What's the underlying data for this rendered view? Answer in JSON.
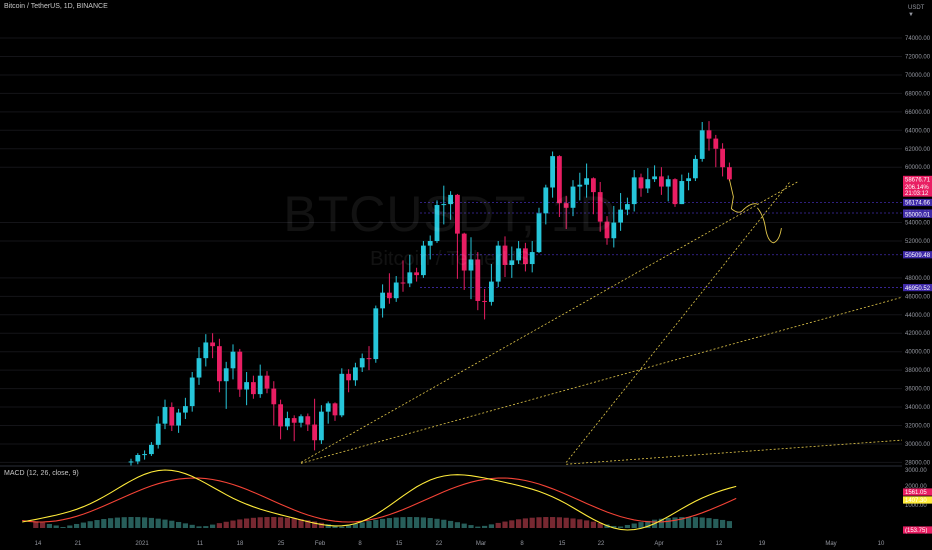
{
  "header": {
    "symbol": "Bitcoin / TetherUS, 1D, BINANCE",
    "watermark_symbol": "BTCUSDT, 1D",
    "watermark_name": "Bitcoin / TetherUS",
    "currency": "USDT",
    "currency_sub": "▼"
  },
  "macd": {
    "label": "MACD (12, 26, close, 9)"
  },
  "colors": {
    "up": "#26c6da",
    "down": "#e91e63",
    "macd_line": "#ffeb3b",
    "signal_line": "#f44336",
    "trend": "#e3c84b",
    "hist_up": "#2e6f6a",
    "hist_down": "#8c2f39"
  },
  "chart_data": [
    {
      "type": "candlestick",
      "y_axis_ticks": [
        28000,
        30000,
        32000,
        34000,
        36000,
        38000,
        40000,
        42000,
        44000,
        46000,
        48000,
        52000,
        54000,
        60000,
        62000,
        64000,
        66000,
        68000,
        70000,
        72000,
        74000
      ],
      "y_tick_labels": [
        "28000.00",
        "30000.00",
        "32000.00",
        "34000.00",
        "36000.00",
        "38000.00",
        "40000.00",
        "42000.00",
        "44000.00",
        "46000.00",
        "48000.00",
        "52000.00",
        "54000.00",
        "60000.00",
        "62000.00",
        "64000.00",
        "66000.00",
        "68000.00",
        "70000.00",
        "72000.00",
        "74000.00"
      ],
      "ylim": [
        27500,
        76500
      ],
      "x_tick_labels": [
        "14",
        "21",
        "2021",
        "11",
        "18",
        "25",
        "Feb",
        "8",
        "15",
        "22",
        "Mar",
        "8",
        "15",
        "22",
        "Apr",
        "12",
        "19",
        "May",
        "10"
      ],
      "price_tags": [
        {
          "value": 58676.71,
          "label": "58676.71",
          "color": "#e91e63"
        },
        {
          "value": 57900,
          "label": "206.14%",
          "color": "#e91e63"
        },
        {
          "value": 57200,
          "label": "21:03:12",
          "color": "#e91e63"
        },
        {
          "value": 56174.66,
          "label": "56174.66",
          "color": "#3f2aa8"
        },
        {
          "value": 55031.89,
          "label": "55031.89",
          "color": "#3f2aa8"
        },
        {
          "value": 54900,
          "label": "55000.01",
          "color": "#3f2aa8"
        },
        {
          "value": 50509.48,
          "label": "50509.48",
          "color": "#3f2aa8"
        },
        {
          "value": 46950.52,
          "label": "46950.52",
          "color": "#3f2aa8"
        }
      ],
      "candles": [
        [
          28000,
          28400,
          27600,
          28100
        ],
        [
          28100,
          29000,
          27800,
          28800
        ],
        [
          28800,
          29300,
          28300,
          28900
        ],
        [
          28900,
          30200,
          28700,
          29900
        ],
        [
          29900,
          33000,
          29500,
          32200
        ],
        [
          32200,
          34800,
          31600,
          34000
        ],
        [
          34000,
          34500,
          31400,
          32000
        ],
        [
          32000,
          33800,
          31200,
          33400
        ],
        [
          33400,
          35000,
          32700,
          34100
        ],
        [
          34100,
          37800,
          33500,
          37200
        ],
        [
          37200,
          40500,
          36400,
          39300
        ],
        [
          39300,
          41900,
          38400,
          41000
        ],
        [
          41000,
          42000,
          39300,
          40600
        ],
        [
          40600,
          41400,
          35600,
          36800
        ],
        [
          36800,
          38900,
          33800,
          38200
        ],
        [
          38200,
          40800,
          37000,
          40000
        ],
        [
          40000,
          40300,
          35100,
          35900
        ],
        [
          35900,
          37800,
          34200,
          36700
        ],
        [
          36700,
          37400,
          34900,
          35400
        ],
        [
          35400,
          38600,
          35000,
          37400
        ],
        [
          37400,
          37900,
          35500,
          36000
        ],
        [
          36000,
          36800,
          32000,
          34300
        ],
        [
          34300,
          34800,
          30500,
          31900
        ],
        [
          31900,
          33500,
          31500,
          32800
        ],
        [
          32800,
          33100,
          30300,
          32300
        ],
        [
          32300,
          33200,
          31800,
          33000
        ],
        [
          33000,
          33300,
          31400,
          32100
        ],
        [
          32100,
          34900,
          29300,
          30400
        ],
        [
          30400,
          34200,
          30000,
          33500
        ],
        [
          33500,
          34600,
          32200,
          34400
        ],
        [
          34400,
          34500,
          32500,
          33100
        ],
        [
          33100,
          38200,
          32900,
          37600
        ],
        [
          37600,
          38100,
          35600,
          36900
        ],
        [
          36900,
          38800,
          36300,
          38300
        ],
        [
          38300,
          39800,
          37800,
          39300
        ],
        [
          39300,
          40600,
          38000,
          39200
        ],
        [
          39200,
          45000,
          38800,
          44700
        ],
        [
          44700,
          47300,
          43700,
          46400
        ],
        [
          46400,
          48500,
          45200,
          45800
        ],
        [
          45800,
          48200,
          45400,
          47500
        ],
        [
          47500,
          49900,
          46500,
          47400
        ],
        [
          47400,
          50500,
          47000,
          48600
        ],
        [
          48600,
          49100,
          47600,
          48300
        ],
        [
          48300,
          52000,
          48000,
          51500
        ],
        [
          51500,
          52600,
          50000,
          52000
        ],
        [
          52000,
          56400,
          51800,
          55900
        ],
        [
          55900,
          58000,
          53800,
          56000
        ],
        [
          56000,
          57400,
          54300,
          57000
        ],
        [
          57000,
          57100,
          47900,
          52800
        ],
        [
          52800,
          52900,
          46700,
          48800
        ],
        [
          48800,
          52400,
          45700,
          50000
        ],
        [
          50000,
          50800,
          44500,
          45500
        ],
        [
          45500,
          46800,
          43500,
          45400
        ],
        [
          45400,
          49500,
          45000,
          47600
        ],
        [
          47600,
          52000,
          47000,
          51500
        ],
        [
          51500,
          52500,
          48100,
          49400
        ],
        [
          49400,
          51400,
          48000,
          49900
        ],
        [
          49900,
          52000,
          49500,
          51200
        ],
        [
          51200,
          51800,
          48700,
          49500
        ],
        [
          49500,
          52000,
          48600,
          50800
        ],
        [
          50800,
          55600,
          50700,
          55000
        ],
        [
          55000,
          58100,
          53800,
          57800
        ],
        [
          57800,
          61700,
          56700,
          61200
        ],
        [
          61200,
          61300,
          54600,
          56100
        ],
        [
          56100,
          56900,
          53300,
          55600
        ],
        [
          55600,
          58600,
          54700,
          57900
        ],
        [
          57900,
          59400,
          56400,
          58100
        ],
        [
          58100,
          60400,
          56700,
          58800
        ],
        [
          58800,
          58900,
          54900,
          57300
        ],
        [
          57300,
          58400,
          53000,
          54100
        ],
        [
          54100,
          54700,
          51600,
          52300
        ],
        [
          52300,
          55800,
          51300,
          54000
        ],
        [
          54000,
          57200,
          53100,
          55400
        ],
        [
          55400,
          56700,
          54800,
          56000
        ],
        [
          56000,
          59700,
          55200,
          58900
        ],
        [
          58900,
          59300,
          56800,
          57700
        ],
        [
          57700,
          59900,
          57200,
          58700
        ],
        [
          58700,
          60200,
          58400,
          59000
        ],
        [
          59000,
          60000,
          57000,
          57900
        ],
        [
          57900,
          59100,
          56300,
          58700
        ],
        [
          58700,
          58800,
          55700,
          56000
        ],
        [
          56000,
          59200,
          56000,
          58500
        ],
        [
          58500,
          59400,
          57500,
          58800
        ],
        [
          58800,
          61300,
          58500,
          60900
        ],
        [
          60900,
          64900,
          60600,
          64000
        ],
        [
          64000,
          65000,
          61800,
          63100
        ],
        [
          63100,
          63500,
          60000,
          62000
        ],
        [
          62000,
          62600,
          59000,
          60000
        ],
        [
          60000,
          60500,
          58500,
          58677
        ]
      ],
      "trend_lines": [
        {
          "from": [
            25,
            28000
          ],
          "to": [
            98,
            58400
          ]
        },
        {
          "from": [
            25,
            27900
          ],
          "to": [
            160,
            55400
          ]
        },
        {
          "from": [
            64,
            27800
          ],
          "to": [
            200,
            35000
          ]
        },
        {
          "from": [
            64,
            28000
          ],
          "to": [
            97,
            58500
          ]
        }
      ],
      "horizontal_levels": [
        56174.66,
        55031.89,
        50509.48,
        46950.52
      ]
    },
    {
      "type": "macd",
      "series": [
        {
          "name": "MACD (12, 26, close, 9)"
        }
      ],
      "y_tick_labels": [
        "3000.00",
        "2000.00",
        "1000.00"
      ],
      "value_tags": [
        {
          "label": "1561.05",
          "color": "#e91e63"
        },
        {
          "label": "1407.30",
          "color": "#ffeb3b",
          "text": "#000000"
        },
        {
          "label": "(153.75)",
          "color": "#e91e63"
        }
      ]
    }
  ]
}
